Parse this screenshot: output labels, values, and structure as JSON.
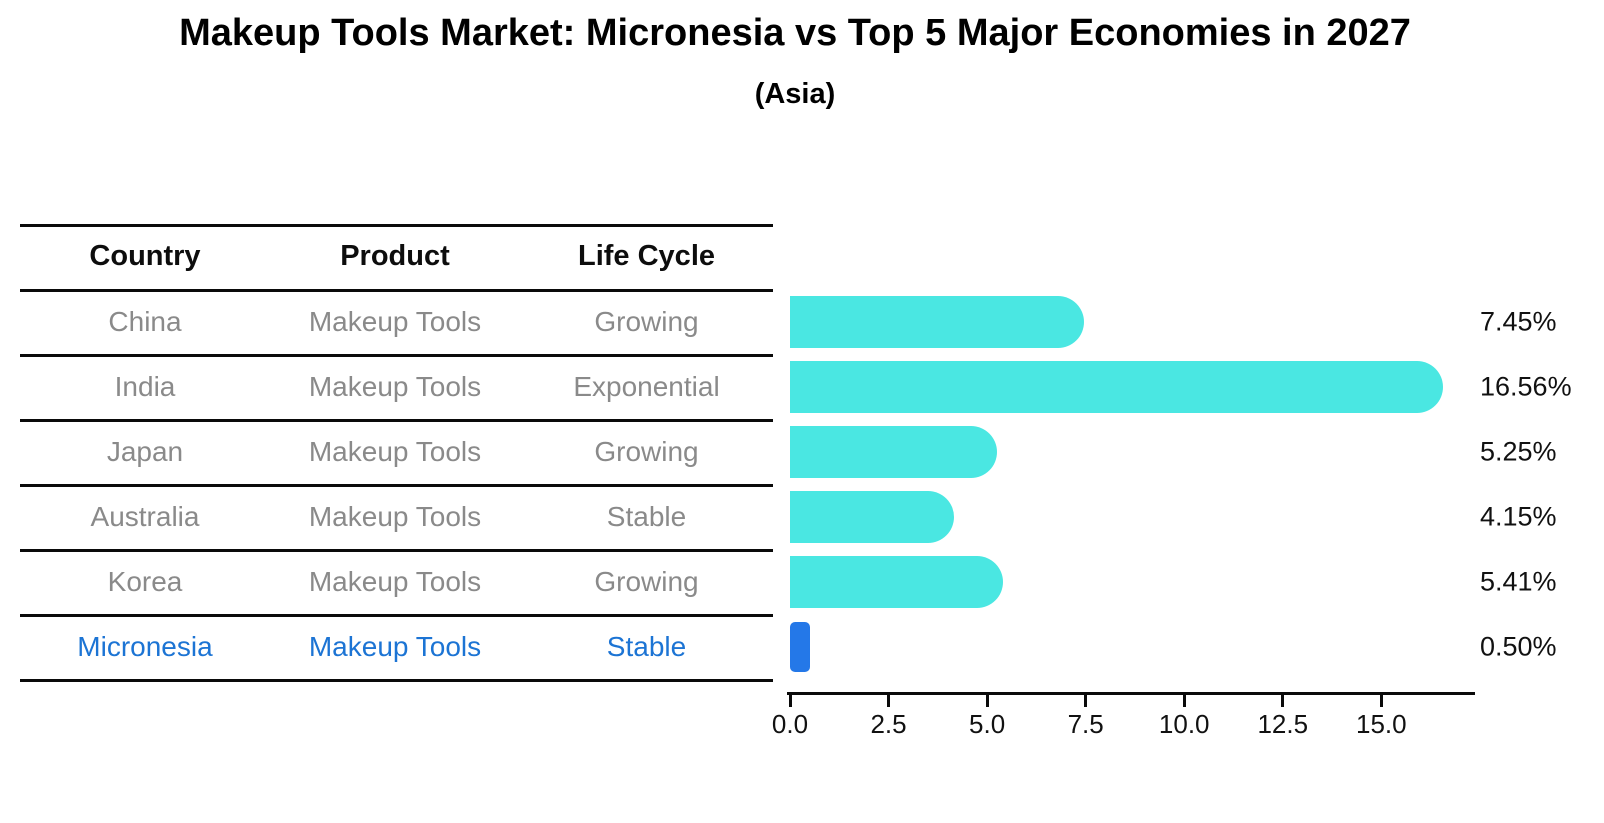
{
  "title": "Makeup Tools Market: Micronesia vs Top 5 Major Economies in 2027",
  "subtitle": "(Asia)",
  "table": {
    "headers": [
      "Country",
      "Product",
      "Life Cycle"
    ],
    "rows": [
      {
        "country": "China",
        "product": "Makeup Tools",
        "life_cycle": "Growing",
        "highlight": false
      },
      {
        "country": "India",
        "product": "Makeup Tools",
        "life_cycle": "Exponential",
        "highlight": false
      },
      {
        "country": "Japan",
        "product": "Makeup Tools",
        "life_cycle": "Growing",
        "highlight": false
      },
      {
        "country": "Australia",
        "product": "Makeup Tools",
        "life_cycle": "Stable",
        "highlight": false
      },
      {
        "country": "Korea",
        "product": "Makeup Tools",
        "life_cycle": "Growing",
        "highlight": false
      },
      {
        "country": "Micronesia",
        "product": "Makeup Tools",
        "life_cycle": "Stable",
        "highlight": true
      }
    ]
  },
  "chart_data": {
    "type": "bar",
    "orientation": "horizontal",
    "title": "Makeup Tools Market: Micronesia vs Top 5 Major Economies in 2027",
    "subtitle": "(Asia)",
    "categories": [
      "China",
      "India",
      "Japan",
      "Australia",
      "Korea",
      "Micronesia"
    ],
    "values": [
      7.45,
      16.56,
      5.25,
      4.15,
      5.41,
      0.5
    ],
    "value_labels": [
      "7.45%",
      "16.56%",
      "5.25%",
      "4.15%",
      "5.41%",
      "0.50%"
    ],
    "xlabel": "",
    "ylabel": "",
    "xlim": [
      0,
      17.3
    ],
    "xticks": [
      0.0,
      2.5,
      5.0,
      7.5,
      10.0,
      12.5,
      15.0
    ],
    "xtick_labels": [
      "0.0",
      "2.5",
      "5.0",
      "7.5",
      "10.0",
      "12.5",
      "15.0"
    ],
    "grid": false,
    "legend": false,
    "highlight_index": 5
  },
  "colors": {
    "bar": "#4AE7E2",
    "highlight_bar": "#2478E8",
    "highlight_text": "#1C74D4",
    "cell_text": "#8A8A8A",
    "axis_text": "#111111"
  }
}
